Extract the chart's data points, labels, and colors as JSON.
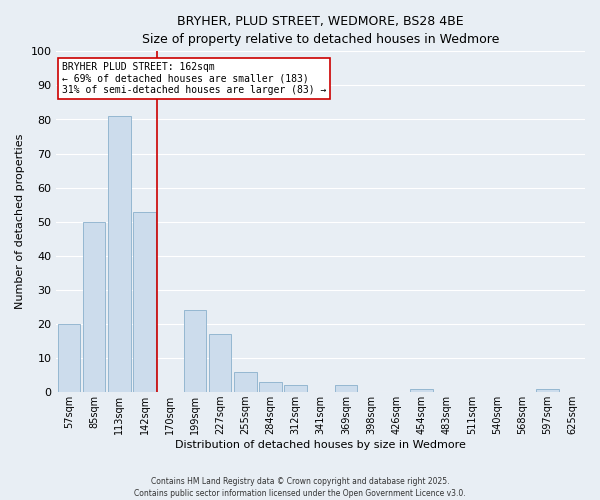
{
  "title": "BRYHER, PLUD STREET, WEDMORE, BS28 4BE",
  "subtitle": "Size of property relative to detached houses in Wedmore",
  "xlabel": "Distribution of detached houses by size in Wedmore",
  "ylabel": "Number of detached properties",
  "categories": [
    "57sqm",
    "85sqm",
    "113sqm",
    "142sqm",
    "170sqm",
    "199sqm",
    "227sqm",
    "255sqm",
    "284sqm",
    "312sqm",
    "341sqm",
    "369sqm",
    "398sqm",
    "426sqm",
    "454sqm",
    "483sqm",
    "511sqm",
    "540sqm",
    "568sqm",
    "597sqm",
    "625sqm"
  ],
  "values": [
    20,
    50,
    81,
    53,
    0,
    24,
    17,
    6,
    3,
    2,
    0,
    2,
    0,
    0,
    1,
    0,
    0,
    0,
    0,
    1,
    0
  ],
  "bar_color": "#ccdcec",
  "bar_edge_color": "#8ab0cc",
  "vline_pos": 3.5,
  "vline_color": "#cc0000",
  "annotation_title": "BRYHER PLUD STREET: 162sqm",
  "annotation_line1": "← 69% of detached houses are smaller (183)",
  "annotation_line2": "31% of semi-detached houses are larger (83) →",
  "ylim": [
    0,
    100
  ],
  "yticks": [
    0,
    10,
    20,
    30,
    40,
    50,
    60,
    70,
    80,
    90,
    100
  ],
  "background_color": "#e8eef4",
  "plot_background_color": "#e8eef4",
  "grid_color": "#ffffff",
  "title_fontsize": 9,
  "subtitle_fontsize": 9,
  "axis_label_fontsize": 8,
  "tick_fontsize": 7,
  "footnote1": "Contains HM Land Registry data © Crown copyright and database right 2025.",
  "footnote2": "Contains public sector information licensed under the Open Government Licence v3.0."
}
